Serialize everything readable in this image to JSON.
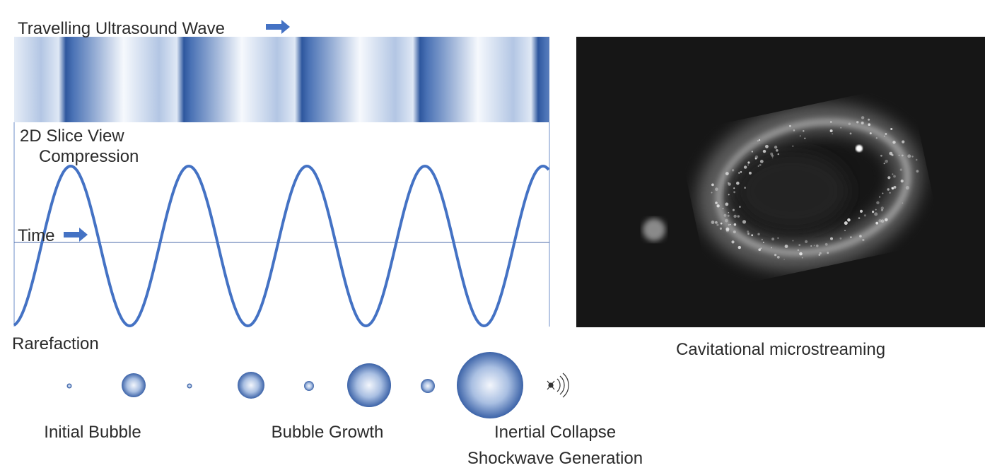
{
  "wave_panel": {
    "title": "Travelling Ultrasound Wave",
    "slice_label": "2D Slice View",
    "compression_label": "Compression",
    "time_label": "Time",
    "rarefaction_label": "Rarefaction"
  },
  "photo": {
    "caption": "Cavitational microstreaming"
  },
  "bubble_stages": {
    "initial": "Initial Bubble",
    "growth": "Bubble Growth",
    "collapse": "Inertial Collapse",
    "shockwave": "Shockwave Generation"
  }
}
